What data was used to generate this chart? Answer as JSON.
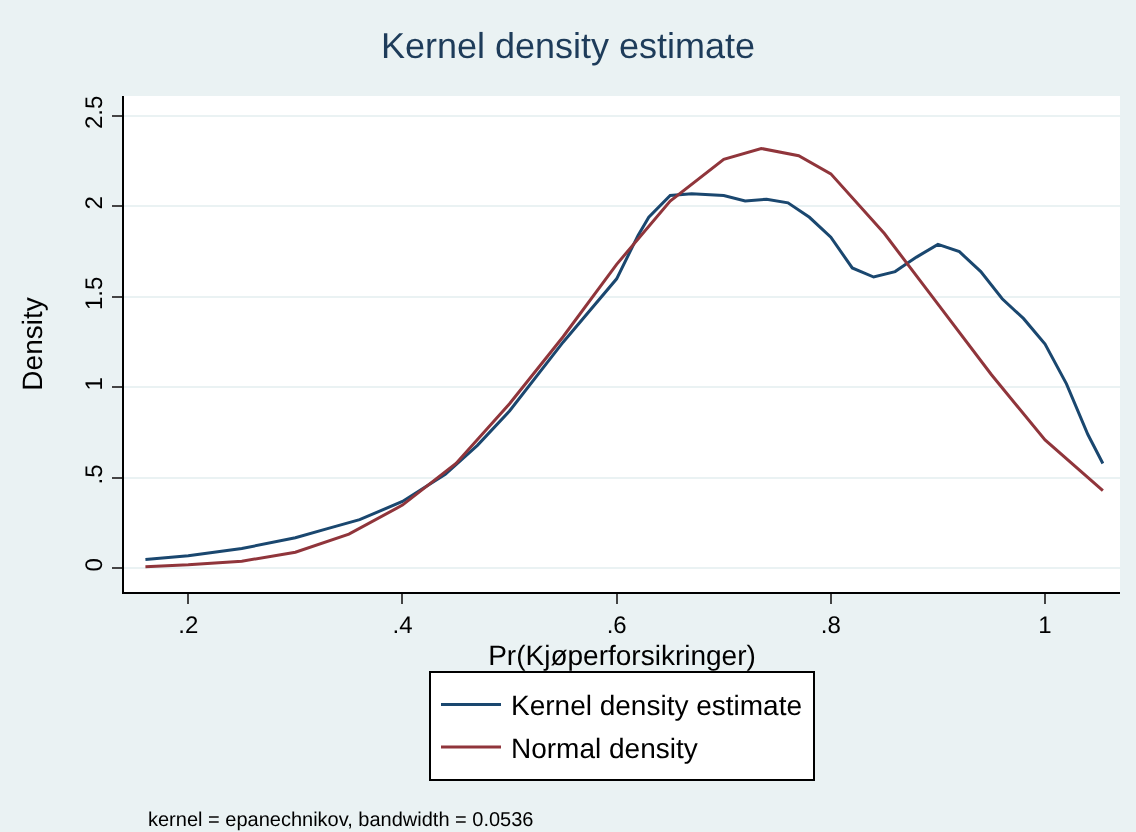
{
  "chart_data": {
    "type": "line",
    "title": "Kernel density estimate",
    "xlabel": "Pr(Kjøperforsikringer)",
    "ylabel": "Density",
    "xlim": [
      0.14,
      1.07
    ],
    "ylim": [
      -0.13,
      2.61
    ],
    "xticks": [
      {
        "value": 0.2,
        "label": ".2"
      },
      {
        "value": 0.4,
        "label": ".4"
      },
      {
        "value": 0.6,
        "label": ".6"
      },
      {
        "value": 0.8,
        "label": ".8"
      },
      1
    ],
    "yticks": [
      0,
      {
        "value": 0.5,
        "label": ".5"
      },
      1,
      {
        "value": 1.5,
        "label": "1.5"
      },
      2,
      {
        "value": 2.5,
        "label": "2.5"
      }
    ],
    "grid": "y",
    "legend": "bottom",
    "marker": "none",
    "line_style": "solid",
    "annotations": [
      "kernel = epanechnikov, bandwidth = 0.0536"
    ],
    "series": [
      {
        "name": "Kernel density estimate",
        "color": "#1a476f",
        "x": [
          0.16,
          0.2,
          0.25,
          0.3,
          0.33,
          0.36,
          0.4,
          0.44,
          0.47,
          0.5,
          0.55,
          0.6,
          0.62,
          0.63,
          0.65,
          0.67,
          0.7,
          0.72,
          0.74,
          0.76,
          0.78,
          0.8,
          0.82,
          0.84,
          0.86,
          0.87,
          0.88,
          0.9,
          0.92,
          0.94,
          0.96,
          0.98,
          1.0,
          1.02,
          1.04,
          1.054
        ],
        "values": [
          0.05,
          0.07,
          0.11,
          0.17,
          0.22,
          0.27,
          0.37,
          0.52,
          0.68,
          0.87,
          1.25,
          1.6,
          1.84,
          1.94,
          2.06,
          2.07,
          2.06,
          2.03,
          2.04,
          2.02,
          1.94,
          1.83,
          1.66,
          1.61,
          1.64,
          1.68,
          1.72,
          1.79,
          1.75,
          1.64,
          1.49,
          1.38,
          1.24,
          1.02,
          0.74,
          0.58
        ]
      },
      {
        "name": "Normal density",
        "color": "#90353b",
        "x": [
          0.16,
          0.2,
          0.25,
          0.3,
          0.35,
          0.4,
          0.45,
          0.5,
          0.55,
          0.6,
          0.65,
          0.7,
          0.735,
          0.77,
          0.8,
          0.85,
          0.9,
          0.95,
          1.0,
          1.054
        ],
        "values": [
          0.01,
          0.02,
          0.04,
          0.09,
          0.19,
          0.35,
          0.58,
          0.91,
          1.28,
          1.68,
          2.03,
          2.26,
          2.32,
          2.28,
          2.18,
          1.85,
          1.46,
          1.07,
          0.71,
          0.43
        ]
      }
    ]
  }
}
